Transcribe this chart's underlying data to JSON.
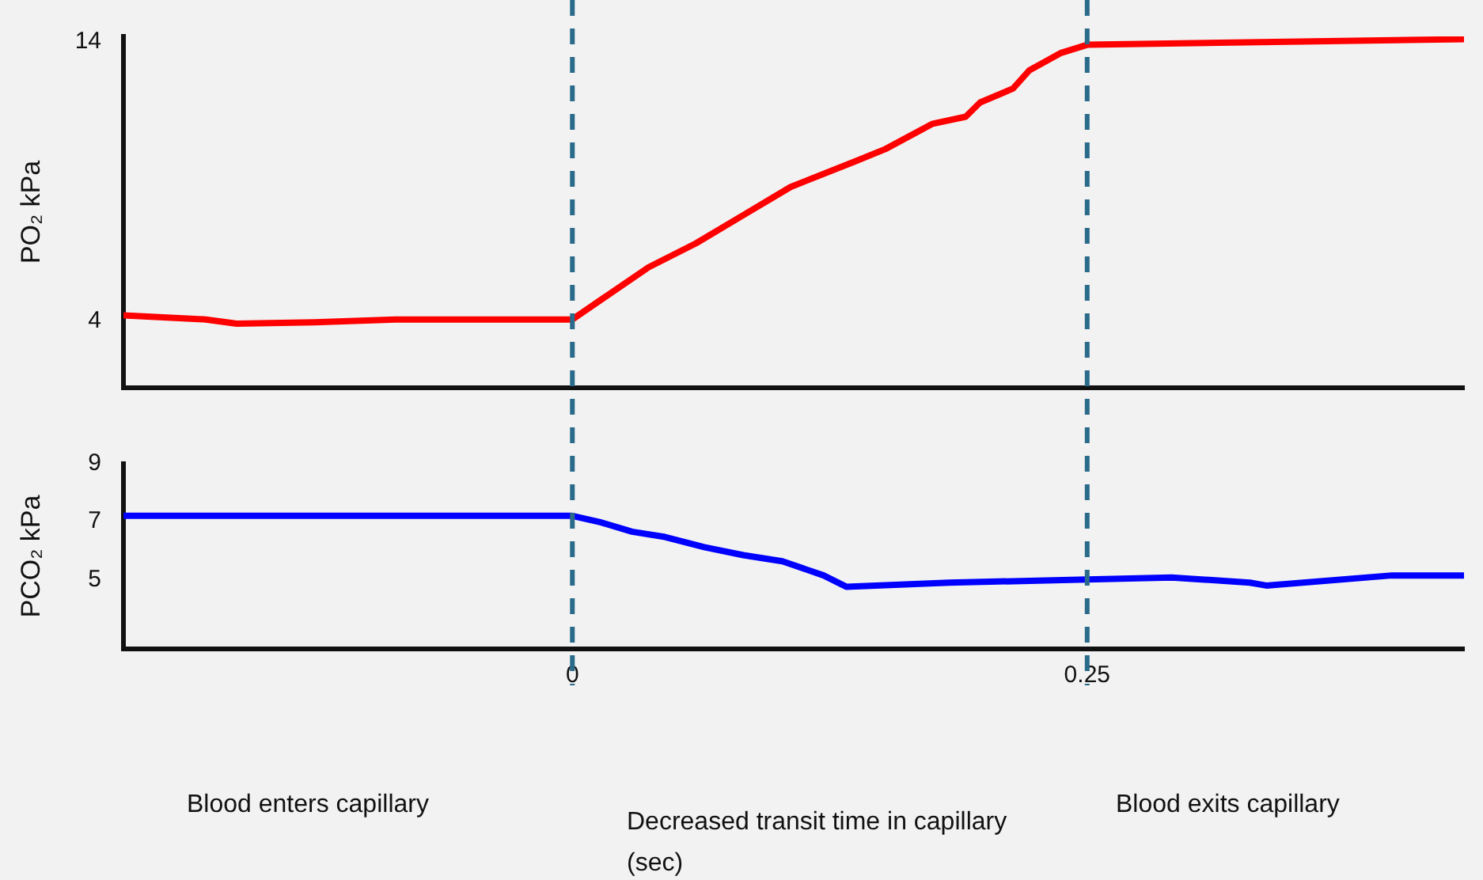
{
  "chart_data": [
    {
      "type": "line",
      "ylabel": "PO₂ kPa",
      "xlim": [
        -0.218,
        0.433
      ],
      "ylim": [
        1.6,
        14.2
      ],
      "yticks": [
        4,
        14
      ],
      "grid": false,
      "legend": false,
      "marker": "none",
      "tick_labels": "y",
      "ref_lines": [
        {
          "axis": "x",
          "value": 0,
          "color": "#2a6a8a",
          "line_style": "dashed"
        },
        {
          "axis": "x",
          "value": 0.25,
          "color": "#2a6a8a",
          "line_style": "dashed"
        }
      ],
      "series": [
        {
          "color": "#ff0000",
          "x": [
            -0.218,
            -0.178,
            -0.163,
            -0.125,
            -0.086,
            -0.048,
            0,
            0.014,
            0.037,
            0.06,
            0.083,
            0.106,
            0.137,
            0.152,
            0.175,
            0.191,
            0.198,
            0.214,
            0.222,
            0.237,
            0.25,
            0.433
          ],
          "values": [
            4.2,
            4.05,
            3.9,
            3.95,
            4.05,
            4.05,
            4.05,
            4.76,
            5.92,
            6.78,
            7.79,
            8.8,
            9.71,
            10.16,
            11.07,
            11.32,
            11.83,
            12.33,
            12.99,
            13.6,
            13.9,
            14.1
          ]
        }
      ]
    },
    {
      "type": "line",
      "ylabel": "PCO₂ kPa",
      "xlabel": "Decreased transit time in capillary (sec)",
      "xlim": [
        -0.218,
        0.433
      ],
      "xticks": [
        0,
        0.25
      ],
      "ylim": [
        2.6,
        9
      ],
      "yticks": [
        5,
        7,
        9
      ],
      "grid": false,
      "legend": false,
      "marker": "none",
      "annotations": [
        "Blood enters capillary",
        "Blood exits capillary"
      ],
      "ref_lines": [
        {
          "axis": "x",
          "value": 0,
          "color": "#2a6a8a",
          "line_style": "dashed"
        },
        {
          "axis": "x",
          "value": 0.25,
          "color": "#2a6a8a",
          "line_style": "dashed"
        }
      ],
      "series": [
        {
          "color": "#0000ff",
          "x": [
            -0.218,
            0,
            0.014,
            0.029,
            0.045,
            0.064,
            0.083,
            0.102,
            0.122,
            0.133,
            0.183,
            0.25,
            0.291,
            0.329,
            0.337,
            0.398,
            0.433
          ],
          "values": [
            7.2,
            7.2,
            6.97,
            6.65,
            6.47,
            6.12,
            5.84,
            5.63,
            5.14,
            4.75,
            4.89,
            5.0,
            5.07,
            4.89,
            4.79,
            5.14,
            5.14
          ]
        }
      ]
    }
  ]
}
